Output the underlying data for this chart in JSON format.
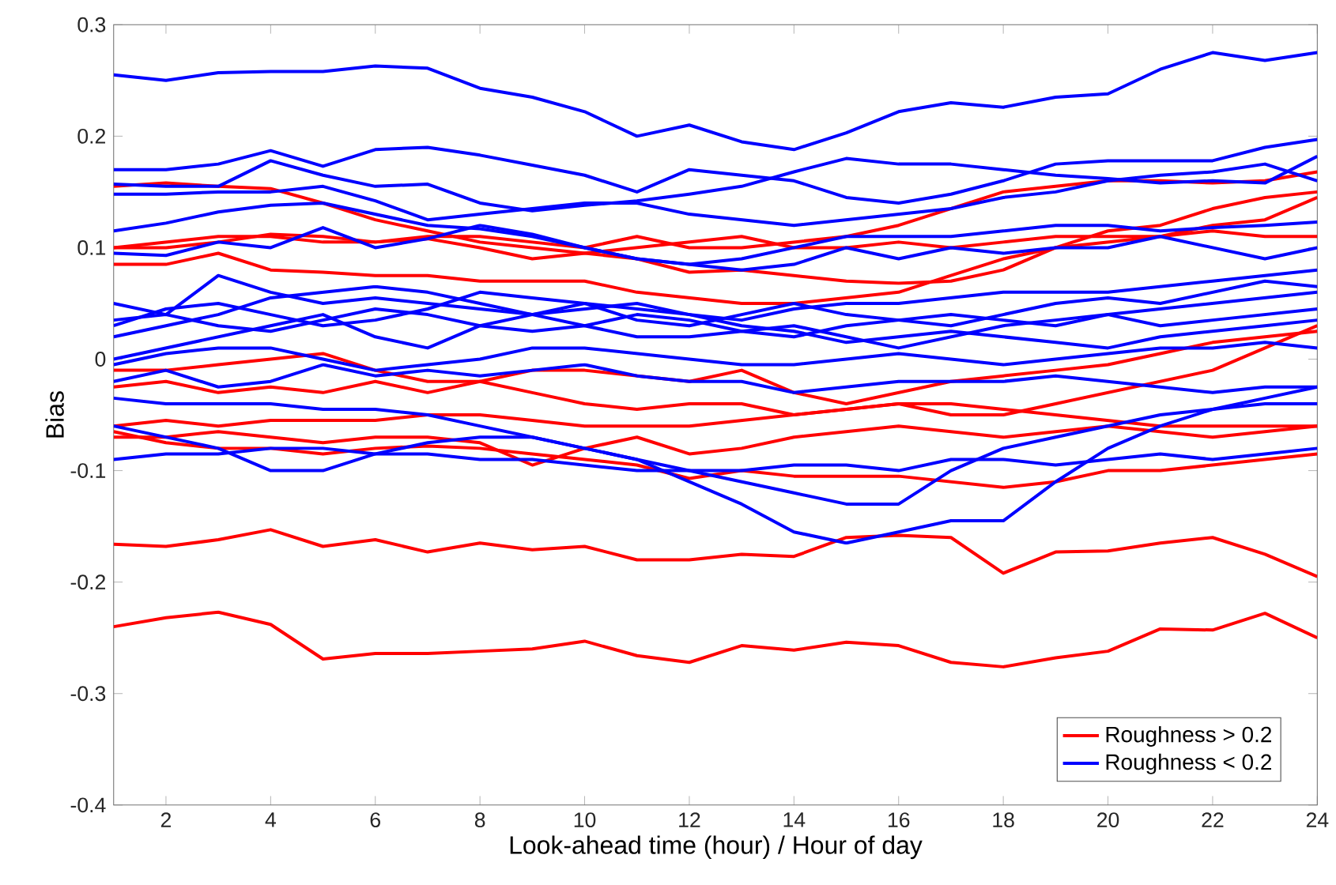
{
  "chart_data": {
    "type": "line",
    "xlabel": "Look-ahead time (hour) / Hour of day",
    "ylabel": "Bias",
    "x": [
      1,
      2,
      3,
      4,
      5,
      6,
      7,
      8,
      9,
      10,
      11,
      12,
      13,
      14,
      15,
      16,
      17,
      18,
      19,
      20,
      21,
      22,
      23,
      24
    ],
    "xlim": [
      1,
      24
    ],
    "xticks": [
      2,
      4,
      6,
      8,
      10,
      12,
      14,
      16,
      18,
      20,
      22,
      24
    ],
    "ylim": [
      -0.4,
      0.3
    ],
    "yticks": [
      -0.4,
      -0.3,
      -0.2,
      -0.1,
      0,
      0.1,
      0.2,
      0.3
    ],
    "grid": false,
    "legend": "bottom right",
    "marker": "none",
    "line_style": "solid",
    "series": [
      {
        "name": "Roughness > 0.2",
        "color": "#ff0000",
        "values": [
          -0.24,
          -0.232,
          -0.227,
          -0.238,
          -0.269,
          -0.264,
          -0.264,
          -0.262,
          -0.26,
          -0.253,
          -0.266,
          -0.272,
          -0.257,
          -0.261,
          -0.254,
          -0.257,
          -0.272,
          -0.276,
          -0.268,
          -0.262,
          -0.242,
          -0.243,
          -0.228,
          -0.25
        ]
      },
      {
        "color": "#ff0000",
        "values": [
          -0.166,
          -0.168,
          -0.162,
          -0.153,
          -0.168,
          -0.162,
          -0.173,
          -0.165,
          -0.171,
          -0.168,
          -0.18,
          -0.18,
          -0.175,
          -0.177,
          -0.16,
          -0.158,
          -0.16,
          -0.192,
          -0.173,
          -0.172,
          -0.165,
          -0.16,
          -0.175,
          -0.195
        ]
      },
      {
        "color": "#ff0000",
        "values": [
          0.155,
          0.158,
          0.155,
          0.153,
          0.14,
          0.125,
          0.115,
          0.105,
          0.1,
          0.095,
          0.09,
          0.078,
          0.08,
          0.075,
          0.07,
          0.068,
          0.07,
          0.08,
          0.1,
          0.115,
          0.12,
          0.135,
          0.145,
          0.15
        ]
      },
      {
        "color": "#ff0000",
        "values": [
          0.1,
          0.105,
          0.11,
          0.11,
          0.105,
          0.105,
          0.11,
          0.11,
          0.105,
          0.1,
          0.11,
          0.1,
          0.1,
          0.105,
          0.11,
          0.12,
          0.135,
          0.15,
          0.155,
          0.16,
          0.16,
          0.158,
          0.16,
          0.168
        ]
      },
      {
        "color": "#ff0000",
        "values": [
          0.085,
          0.085,
          0.095,
          0.08,
          0.078,
          0.075,
          0.075,
          0.07,
          0.07,
          0.07,
          0.06,
          0.055,
          0.05,
          0.05,
          0.055,
          0.06,
          0.075,
          0.09,
          0.1,
          0.105,
          0.11,
          0.115,
          0.11,
          0.11
        ]
      },
      {
        "color": "#ff0000",
        "values": [
          0.1,
          0.1,
          0.105,
          0.112,
          0.11,
          0.105,
          0.108,
          0.1,
          0.09,
          0.095,
          0.1,
          0.105,
          0.11,
          0.1,
          0.1,
          0.105,
          0.1,
          0.105,
          0.11,
          0.11,
          0.11,
          0.12,
          0.125,
          0.145
        ]
      },
      {
        "color": "#ff0000",
        "values": [
          -0.01,
          -0.01,
          -0.005,
          0,
          0.005,
          -0.01,
          -0.02,
          -0.02,
          -0.01,
          -0.01,
          -0.015,
          -0.02,
          -0.01,
          -0.03,
          -0.04,
          -0.03,
          -0.02,
          -0.015,
          -0.01,
          -0.005,
          0.005,
          0.015,
          0.02,
          0.025
        ]
      },
      {
        "color": "#ff0000",
        "values": [
          -0.025,
          -0.02,
          -0.03,
          -0.025,
          -0.03,
          -0.02,
          -0.03,
          -0.02,
          -0.03,
          -0.04,
          -0.045,
          -0.04,
          -0.04,
          -0.05,
          -0.045,
          -0.04,
          -0.05,
          -0.05,
          -0.04,
          -0.03,
          -0.02,
          -0.01,
          0.01,
          0.03
        ]
      },
      {
        "color": "#ff0000",
        "values": [
          -0.06,
          -0.055,
          -0.06,
          -0.055,
          -0.055,
          -0.055,
          -0.05,
          -0.05,
          -0.055,
          -0.06,
          -0.06,
          -0.06,
          -0.055,
          -0.05,
          -0.045,
          -0.04,
          -0.04,
          -0.045,
          -0.05,
          -0.055,
          -0.06,
          -0.06,
          -0.06,
          -0.06
        ]
      },
      {
        "color": "#ff0000",
        "values": [
          -0.07,
          -0.07,
          -0.065,
          -0.07,
          -0.075,
          -0.07,
          -0.07,
          -0.075,
          -0.095,
          -0.08,
          -0.07,
          -0.085,
          -0.08,
          -0.07,
          -0.065,
          -0.06,
          -0.065,
          -0.07,
          -0.065,
          -0.06,
          -0.065,
          -0.07,
          -0.065,
          -0.06
        ]
      },
      {
        "color": "#ff0000",
        "values": [
          -0.065,
          -0.075,
          -0.08,
          -0.08,
          -0.085,
          -0.08,
          -0.078,
          -0.08,
          -0.085,
          -0.09,
          -0.095,
          -0.107,
          -0.1,
          -0.105,
          -0.105,
          -0.105,
          -0.11,
          -0.115,
          -0.11,
          -0.1,
          -0.1,
          -0.095,
          -0.09,
          -0.085
        ]
      },
      {
        "name": "Roughness < 0.2",
        "color": "#0000ff",
        "values": [
          0.255,
          0.25,
          0.257,
          0.258,
          0.258,
          0.263,
          0.261,
          0.243,
          0.235,
          0.222,
          0.2,
          0.21,
          0.195,
          0.188,
          0.203,
          0.222,
          0.23,
          0.226,
          0.235,
          0.238,
          0.26,
          0.275,
          0.268,
          0.275
        ]
      },
      {
        "color": "#0000ff",
        "values": [
          0.17,
          0.17,
          0.175,
          0.187,
          0.173,
          0.188,
          0.19,
          0.183,
          0.174,
          0.165,
          0.15,
          0.17,
          0.165,
          0.16,
          0.145,
          0.14,
          0.148,
          0.16,
          0.175,
          0.178,
          0.178,
          0.178,
          0.19,
          0.197
        ]
      },
      {
        "color": "#0000ff",
        "values": [
          0.157,
          0.155,
          0.155,
          0.178,
          0.165,
          0.155,
          0.157,
          0.14,
          0.133,
          0.138,
          0.142,
          0.148,
          0.155,
          0.168,
          0.18,
          0.175,
          0.175,
          0.17,
          0.165,
          0.162,
          0.158,
          0.16,
          0.158,
          0.182
        ]
      },
      {
        "color": "#0000ff",
        "values": [
          0.148,
          0.148,
          0.15,
          0.15,
          0.155,
          0.142,
          0.125,
          0.13,
          0.135,
          0.14,
          0.14,
          0.13,
          0.125,
          0.12,
          0.125,
          0.13,
          0.135,
          0.145,
          0.15,
          0.16,
          0.165,
          0.168,
          0.175,
          0.16
        ]
      },
      {
        "color": "#0000ff",
        "values": [
          0.115,
          0.122,
          0.132,
          0.138,
          0.14,
          0.13,
          0.12,
          0.117,
          0.11,
          0.1,
          0.09,
          0.085,
          0.09,
          0.1,
          0.11,
          0.11,
          0.11,
          0.115,
          0.12,
          0.12,
          0.115,
          0.118,
          0.12,
          0.123
        ]
      },
      {
        "color": "#0000ff",
        "values": [
          0.095,
          0.093,
          0.105,
          0.1,
          0.118,
          0.1,
          0.108,
          0.12,
          0.112,
          0.1,
          0.09,
          0.085,
          0.08,
          0.085,
          0.1,
          0.09,
          0.1,
          0.095,
          0.1,
          0.1,
          0.11,
          0.1,
          0.09,
          0.1
        ]
      },
      {
        "color": "#0000ff",
        "values": [
          0.05,
          0.04,
          0.075,
          0.06,
          0.05,
          0.055,
          0.05,
          0.045,
          0.04,
          0.05,
          0.045,
          0.04,
          0.035,
          0.045,
          0.05,
          0.05,
          0.055,
          0.06,
          0.06,
          0.06,
          0.065,
          0.07,
          0.075,
          0.08
        ]
      },
      {
        "color": "#0000ff",
        "values": [
          0.035,
          0.04,
          0.03,
          0.025,
          0.035,
          0.045,
          0.04,
          0.03,
          0.025,
          0.03,
          0.04,
          0.035,
          0.025,
          0.02,
          0.03,
          0.035,
          0.04,
          0.035,
          0.03,
          0.04,
          0.045,
          0.05,
          0.055,
          0.06
        ]
      },
      {
        "color": "#0000ff",
        "values": [
          0.02,
          0.03,
          0.04,
          0.055,
          0.06,
          0.065,
          0.06,
          0.05,
          0.04,
          0.03,
          0.02,
          0.02,
          0.025,
          0.03,
          0.02,
          0.01,
          0.02,
          0.03,
          0.035,
          0.04,
          0.03,
          0.035,
          0.04,
          0.045
        ]
      },
      {
        "color": "#0000ff",
        "values": [
          0.0,
          0.01,
          0.02,
          0.03,
          0.04,
          0.02,
          0.01,
          0.03,
          0.04,
          0.045,
          0.05,
          0.04,
          0.03,
          0.025,
          0.015,
          0.02,
          0.025,
          0.02,
          0.015,
          0.01,
          0.02,
          0.025,
          0.03,
          0.035
        ]
      },
      {
        "color": "#0000ff",
        "values": [
          0.03,
          0.045,
          0.05,
          0.04,
          0.03,
          0.035,
          0.045,
          0.06,
          0.055,
          0.05,
          0.035,
          0.03,
          0.04,
          0.05,
          0.04,
          0.035,
          0.03,
          0.04,
          0.05,
          0.055,
          0.05,
          0.06,
          0.07,
          0.065
        ]
      },
      {
        "color": "#0000ff",
        "values": [
          -0.005,
          0.005,
          0.01,
          0.01,
          0.0,
          -0.01,
          -0.005,
          0.0,
          0.01,
          0.01,
          0.005,
          0.0,
          -0.005,
          -0.005,
          0.0,
          0.005,
          0.0,
          -0.005,
          0.0,
          0.005,
          0.01,
          0.01,
          0.015,
          0.01
        ]
      },
      {
        "color": "#0000ff",
        "values": [
          -0.02,
          -0.01,
          -0.025,
          -0.02,
          -0.005,
          -0.015,
          -0.01,
          -0.015,
          -0.01,
          -0.005,
          -0.015,
          -0.02,
          -0.02,
          -0.03,
          -0.025,
          -0.02,
          -0.02,
          -0.02,
          -0.015,
          -0.02,
          -0.025,
          -0.03,
          -0.025,
          -0.025
        ]
      },
      {
        "color": "#0000ff",
        "values": [
          -0.035,
          -0.04,
          -0.04,
          -0.04,
          -0.045,
          -0.045,
          -0.05,
          -0.06,
          -0.07,
          -0.08,
          -0.09,
          -0.1,
          -0.11,
          -0.12,
          -0.13,
          -0.13,
          -0.1,
          -0.08,
          -0.07,
          -0.06,
          -0.05,
          -0.045,
          -0.04,
          -0.04
        ]
      },
      {
        "color": "#0000ff",
        "values": [
          -0.06,
          -0.07,
          -0.08,
          -0.1,
          -0.1,
          -0.085,
          -0.075,
          -0.07,
          -0.07,
          -0.08,
          -0.09,
          -0.11,
          -0.13,
          -0.155,
          -0.165,
          -0.155,
          -0.145,
          -0.145,
          -0.11,
          -0.08,
          -0.06,
          -0.045,
          -0.035,
          -0.025
        ]
      },
      {
        "color": "#0000ff",
        "values": [
          -0.09,
          -0.085,
          -0.085,
          -0.08,
          -0.08,
          -0.085,
          -0.085,
          -0.09,
          -0.09,
          -0.095,
          -0.1,
          -0.1,
          -0.1,
          -0.095,
          -0.095,
          -0.1,
          -0.09,
          -0.09,
          -0.095,
          -0.09,
          -0.085,
          -0.09,
          -0.085,
          -0.08
        ]
      }
    ]
  }
}
